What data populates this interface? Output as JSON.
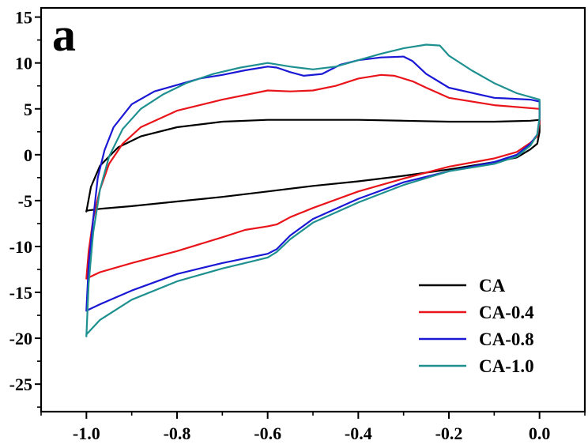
{
  "chart_data": {
    "type": "line",
    "panel_label": "a",
    "title": "",
    "xlabel": "",
    "ylabel": "",
    "xlim": [
      -1.1,
      0.1
    ],
    "ylim": [
      -28,
      16
    ],
    "x_ticks": [
      -1.0,
      -0.8,
      -0.6,
      -0.4,
      -0.2,
      0.0
    ],
    "x_tick_labels": [
      "-1.0",
      "-0.8",
      "-0.6",
      "-0.4",
      "-0.2",
      "0.0"
    ],
    "y_ticks": [
      15,
      10,
      5,
      0,
      -5,
      -10,
      -15,
      -20,
      -25
    ],
    "y_tick_labels": [
      "15",
      "10",
      "5",
      "0",
      "-5",
      "-10",
      "-15",
      "-20",
      "-25"
    ],
    "grid": false,
    "legend_position": "bottom-right",
    "series": [
      {
        "name": "CA",
        "color": "#000000",
        "x": [
          -1.0,
          -0.99,
          -0.97,
          -0.93,
          -0.88,
          -0.8,
          -0.7,
          -0.6,
          -0.5,
          -0.4,
          -0.3,
          -0.2,
          -0.1,
          -0.02,
          0.0,
          0.0,
          -0.005,
          -0.02,
          -0.05,
          -0.1,
          -0.2,
          -0.3,
          -0.4,
          -0.5,
          -0.6,
          -0.7,
          -0.8,
          -0.9,
          -0.97,
          -1.0,
          -1.0
        ],
        "y": [
          -6.2,
          -3.5,
          -1.2,
          0.8,
          2.0,
          3.0,
          3.6,
          3.8,
          3.8,
          3.8,
          3.7,
          3.6,
          3.6,
          3.7,
          3.8,
          2.5,
          1.2,
          0.6,
          -0.3,
          -0.8,
          -1.6,
          -2.3,
          -2.9,
          -3.4,
          -4.0,
          -4.6,
          -5.1,
          -5.6,
          -5.9,
          -6.1,
          -6.2
        ]
      },
      {
        "name": "CA-0.4",
        "color": "#e8141a",
        "x": [
          -1.0,
          -0.995,
          -0.985,
          -0.97,
          -0.95,
          -0.92,
          -0.88,
          -0.8,
          -0.7,
          -0.6,
          -0.55,
          -0.5,
          -0.45,
          -0.4,
          -0.35,
          -0.32,
          -0.28,
          -0.25,
          -0.2,
          -0.1,
          0.0,
          0.0,
          -0.005,
          -0.02,
          -0.05,
          -0.1,
          -0.2,
          -0.3,
          -0.4,
          -0.5,
          -0.55,
          -0.58,
          -0.6,
          -0.65,
          -0.7,
          -0.8,
          -0.9,
          -0.97,
          -1.0,
          -1.0
        ],
        "y": [
          -13.5,
          -10.5,
          -7.0,
          -3.8,
          -1.0,
          1.2,
          3.0,
          4.8,
          6.0,
          7.0,
          6.9,
          7.0,
          7.5,
          8.3,
          8.7,
          8.6,
          8.0,
          7.3,
          6.2,
          5.4,
          5.0,
          3.6,
          2.0,
          1.3,
          0.3,
          -0.4,
          -1.3,
          -2.6,
          -4.0,
          -5.8,
          -6.8,
          -7.6,
          -7.8,
          -8.2,
          -9.0,
          -10.5,
          -11.8,
          -12.8,
          -13.5,
          -13.5
        ]
      },
      {
        "name": "CA-0.8",
        "color": "#1a18d4",
        "x": [
          -1.0,
          -0.995,
          -0.985,
          -0.975,
          -0.96,
          -0.94,
          -0.9,
          -0.85,
          -0.8,
          -0.75,
          -0.7,
          -0.65,
          -0.6,
          -0.58,
          -0.55,
          -0.52,
          -0.48,
          -0.44,
          -0.4,
          -0.35,
          -0.3,
          -0.28,
          -0.25,
          -0.2,
          -0.1,
          -0.02,
          0.0,
          0.0,
          -0.005,
          -0.02,
          -0.05,
          -0.1,
          -0.2,
          -0.3,
          -0.4,
          -0.5,
          -0.55,
          -0.58,
          -0.6,
          -0.65,
          -0.7,
          -0.8,
          -0.9,
          -0.97,
          -1.0,
          -1.0
        ],
        "y": [
          -17.0,
          -12.0,
          -7.0,
          -2.5,
          0.5,
          3.0,
          5.5,
          6.9,
          7.6,
          8.3,
          8.7,
          9.2,
          9.6,
          9.5,
          9.0,
          8.6,
          8.8,
          9.8,
          10.3,
          10.6,
          10.7,
          10.2,
          8.8,
          7.3,
          6.2,
          6.0,
          5.8,
          4.0,
          2.2,
          1.2,
          0.0,
          -0.8,
          -1.8,
          -3.0,
          -4.8,
          -7.0,
          -8.8,
          -10.3,
          -10.8,
          -11.3,
          -11.8,
          -13.0,
          -14.8,
          -16.3,
          -17.0,
          -17.0
        ]
      },
      {
        "name": "CA-1.0",
        "color": "#1e9090",
        "x": [
          -1.0,
          -0.995,
          -0.985,
          -0.97,
          -0.95,
          -0.92,
          -0.88,
          -0.83,
          -0.78,
          -0.72,
          -0.66,
          -0.6,
          -0.55,
          -0.5,
          -0.45,
          -0.4,
          -0.35,
          -0.3,
          -0.25,
          -0.22,
          -0.2,
          -0.15,
          -0.1,
          -0.05,
          0.0,
          0.0,
          -0.005,
          -0.02,
          -0.05,
          -0.1,
          -0.2,
          -0.3,
          -0.4,
          -0.5,
          -0.55,
          -0.58,
          -0.6,
          -0.65,
          -0.7,
          -0.8,
          -0.9,
          -0.97,
          -1.0,
          -1.0
        ],
        "y": [
          -19.8,
          -14.0,
          -8.5,
          -3.8,
          -0.2,
          2.8,
          5.0,
          6.6,
          7.8,
          8.8,
          9.5,
          10.0,
          9.6,
          9.3,
          9.6,
          10.3,
          11.0,
          11.6,
          12.0,
          11.9,
          10.8,
          9.2,
          7.8,
          6.7,
          6.0,
          4.0,
          2.2,
          1.0,
          -0.2,
          -1.0,
          -1.8,
          -3.3,
          -5.2,
          -7.4,
          -9.2,
          -10.6,
          -11.2,
          -11.8,
          -12.4,
          -13.8,
          -15.8,
          -18.0,
          -19.6,
          -19.8
        ]
      }
    ]
  }
}
